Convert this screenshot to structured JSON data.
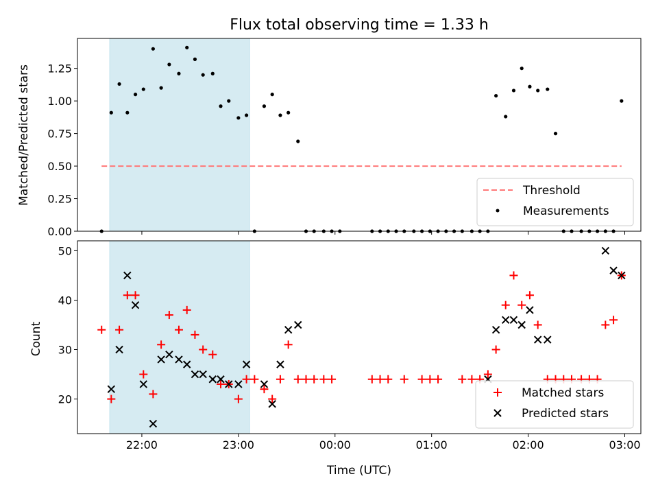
{
  "chart_data": [
    {
      "type": "scatter",
      "title": "Flux total observing time = 1.33 h",
      "ylabel": "Matched/Predicted stars",
      "xlim": [
        "21:20",
        "03:10"
      ],
      "ylim": [
        0,
        1.48
      ],
      "yticks": [
        "0.00",
        "0.25",
        "0.50",
        "0.75",
        "1.00",
        "1.25"
      ],
      "grid": false,
      "shaded_span": [
        "21:40",
        "23:07"
      ],
      "legend_position": "lower-right",
      "threshold": {
        "name": "Threshold",
        "value": 0.5,
        "x": [
          "21:35",
          "02:58"
        ],
        "color": "#ff7777"
      },
      "series": [
        {
          "name": "Measurements",
          "marker": "dot",
          "color": "#000000",
          "x": [
            "21:35",
            "21:41",
            "21:46",
            "21:51",
            "21:56",
            "22:01",
            "22:07",
            "22:12",
            "22:17",
            "22:23",
            "22:28",
            "22:33",
            "22:38",
            "22:44",
            "22:49",
            "22:54",
            "23:00",
            "23:05",
            "23:10",
            "23:16",
            "23:21",
            "23:26",
            "23:31",
            "23:37",
            "23:42",
            "23:47",
            "23:53",
            "23:58",
            "00:03",
            "00:23",
            "00:28",
            "00:33",
            "00:38",
            "00:43",
            "00:49",
            "00:54",
            "00:59",
            "01:04",
            "01:09",
            "01:14",
            "01:19",
            "01:25",
            "01:30",
            "01:35",
            "01:40",
            "01:46",
            "01:51",
            "01:56",
            "02:01",
            "02:06",
            "02:12",
            "02:17",
            "02:22",
            "02:27",
            "02:33",
            "02:38",
            "02:43",
            "02:48",
            "02:53",
            "02:58"
          ],
          "y": [
            0.0,
            0.91,
            1.13,
            0.91,
            1.05,
            1.09,
            1.4,
            1.1,
            1.28,
            1.21,
            1.41,
            1.32,
            1.2,
            1.21,
            0.96,
            1.0,
            0.87,
            0.89,
            0.0,
            0.96,
            1.05,
            0.89,
            0.91,
            0.69,
            0.0,
            0.0,
            0.0,
            0.0,
            0.0,
            0.0,
            0.0,
            0.0,
            0.0,
            0.0,
            0.0,
            0.0,
            0.0,
            0.0,
            0.0,
            0.0,
            0.0,
            0.0,
            0.0,
            0.0,
            1.04,
            0.88,
            1.08,
            1.25,
            1.11,
            1.08,
            1.09,
            0.75,
            0.0,
            0.0,
            0.0,
            0.0,
            0.0,
            0.0,
            0.0,
            1.0
          ]
        }
      ]
    },
    {
      "type": "scatter",
      "ylabel": "Count",
      "xlabel": "Time (UTC)",
      "xlim": [
        "21:20",
        "03:10"
      ],
      "ylim": [
        13,
        52
      ],
      "yticks": [
        "20",
        "30",
        "40",
        "50"
      ],
      "xticks": [
        "22:00",
        "23:00",
        "00:00",
        "01:00",
        "02:00",
        "03:00"
      ],
      "grid": false,
      "shaded_span": [
        "21:40",
        "23:07"
      ],
      "legend_position": "lower-right",
      "series": [
        {
          "name": "Matched stars",
          "marker": "plus",
          "color": "#ff0000",
          "x": [
            "21:35",
            "21:41",
            "21:46",
            "21:51",
            "21:56",
            "22:01",
            "22:07",
            "22:12",
            "22:17",
            "22:23",
            "22:28",
            "22:33",
            "22:38",
            "22:44",
            "22:49",
            "22:54",
            "23:00",
            "23:05",
            "23:10",
            "23:16",
            "23:21",
            "23:26",
            "23:31",
            "23:37",
            "23:42",
            "23:47",
            "23:53",
            "23:58",
            "00:23",
            "00:28",
            "00:33",
            "00:43",
            "00:54",
            "00:59",
            "01:04",
            "01:19",
            "01:25",
            "01:30",
            "01:35",
            "01:40",
            "01:46",
            "01:51",
            "01:56",
            "02:01",
            "02:06",
            "02:12",
            "02:17",
            "02:22",
            "02:27",
            "02:33",
            "02:38",
            "02:43",
            "02:48",
            "02:53",
            "02:58"
          ],
          "y": [
            34,
            20,
            34,
            41,
            41,
            25,
            21,
            31,
            37,
            34,
            38,
            33,
            30,
            29,
            23,
            23,
            20,
            24,
            24,
            22,
            20,
            24,
            31,
            24,
            24,
            24,
            24,
            24,
            24,
            24,
            24,
            24,
            24,
            24,
            24,
            24,
            24,
            24,
            25,
            30,
            39,
            45,
            39,
            41,
            35,
            24,
            24,
            24,
            24,
            24,
            24,
            24,
            35,
            36,
            45
          ]
        },
        {
          "name": "Predicted stars",
          "marker": "cross",
          "color": "#000000",
          "x": [
            "21:41",
            "21:46",
            "21:51",
            "21:56",
            "22:01",
            "22:07",
            "22:12",
            "22:17",
            "22:23",
            "22:28",
            "22:33",
            "22:38",
            "22:44",
            "22:49",
            "22:54",
            "23:00",
            "23:05",
            "23:16",
            "23:21",
            "23:26",
            "23:31",
            "23:37",
            "01:35",
            "01:40",
            "01:46",
            "01:51",
            "01:56",
            "02:01",
            "02:06",
            "02:12",
            "02:48",
            "02:53",
            "02:58"
          ],
          "y": [
            22,
            30,
            45,
            39,
            23,
            15,
            28,
            29,
            28,
            27,
            25,
            25,
            24,
            24,
            23,
            23,
            27,
            23,
            19,
            27,
            34,
            35,
            24,
            34,
            36,
            36,
            35,
            38,
            32,
            32,
            50,
            46,
            45
          ]
        }
      ]
    }
  ]
}
